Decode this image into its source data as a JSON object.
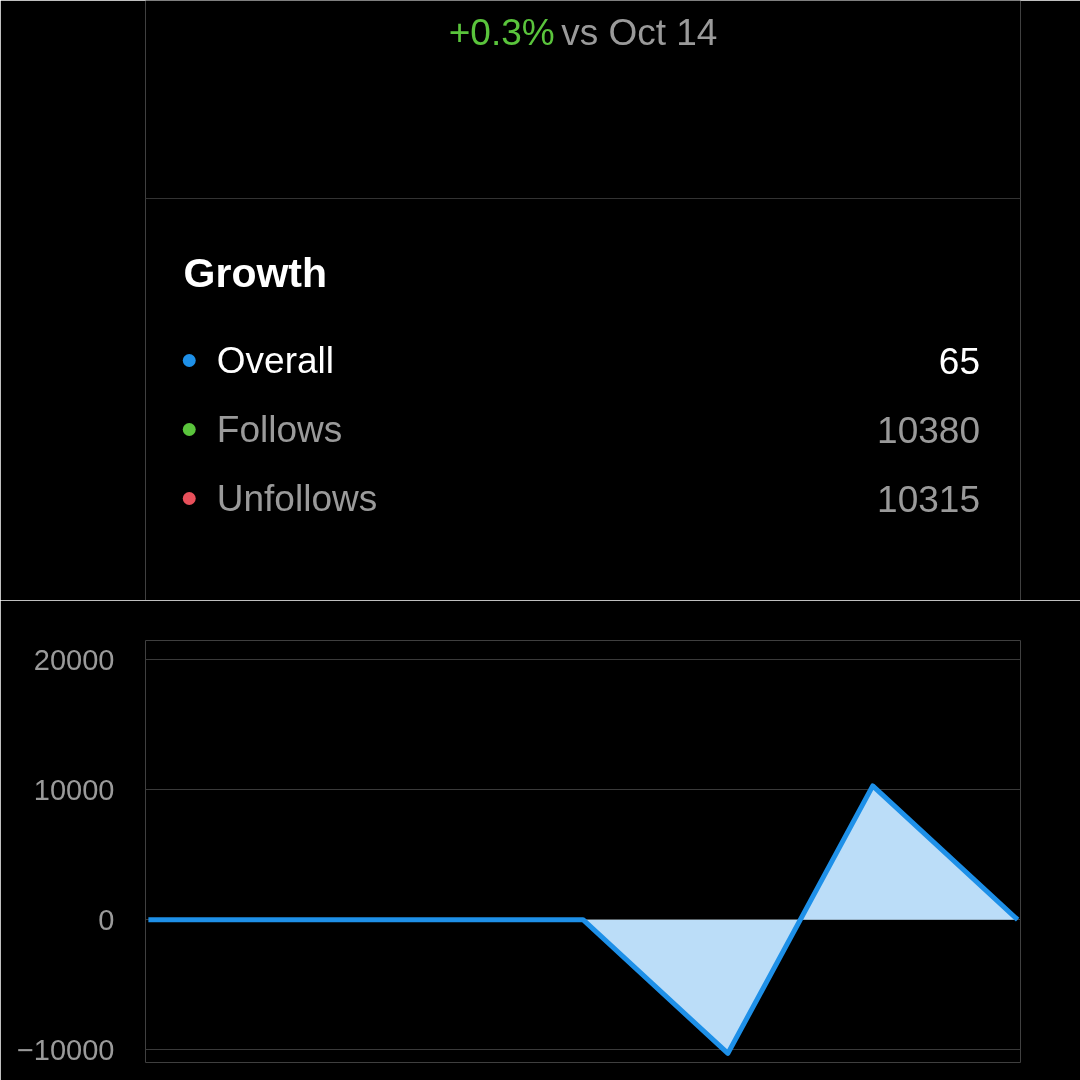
{
  "chart_data": {
    "type": "area",
    "title": "Growth",
    "annotations": [
      "+0.3%",
      "vs Oct 14",
      "65",
      "10380",
      "10315"
    ],
    "categories": [
      null,
      null,
      null,
      null,
      null,
      null,
      null
    ],
    "series": [
      {
        "name": "Overall",
        "color": "#1e90e8",
        "values": [
          0,
          0,
          0,
          0,
          -10300,
          10300,
          0
        ]
      },
      {
        "name": "Follows",
        "color": "#5ac43c",
        "values": [
          null,
          null,
          null,
          null,
          null,
          null,
          null
        ]
      },
      {
        "name": "Unfollows",
        "color": "#e8505b",
        "values": [
          null,
          null,
          null,
          null,
          null,
          null,
          null
        ]
      }
    ],
    "ylim": [
      -11000,
      21500
    ],
    "yticks": [
      -10000,
      0,
      10000,
      20000
    ],
    "grid": "y",
    "legend": "top",
    "tick_labels": "y"
  }
}
